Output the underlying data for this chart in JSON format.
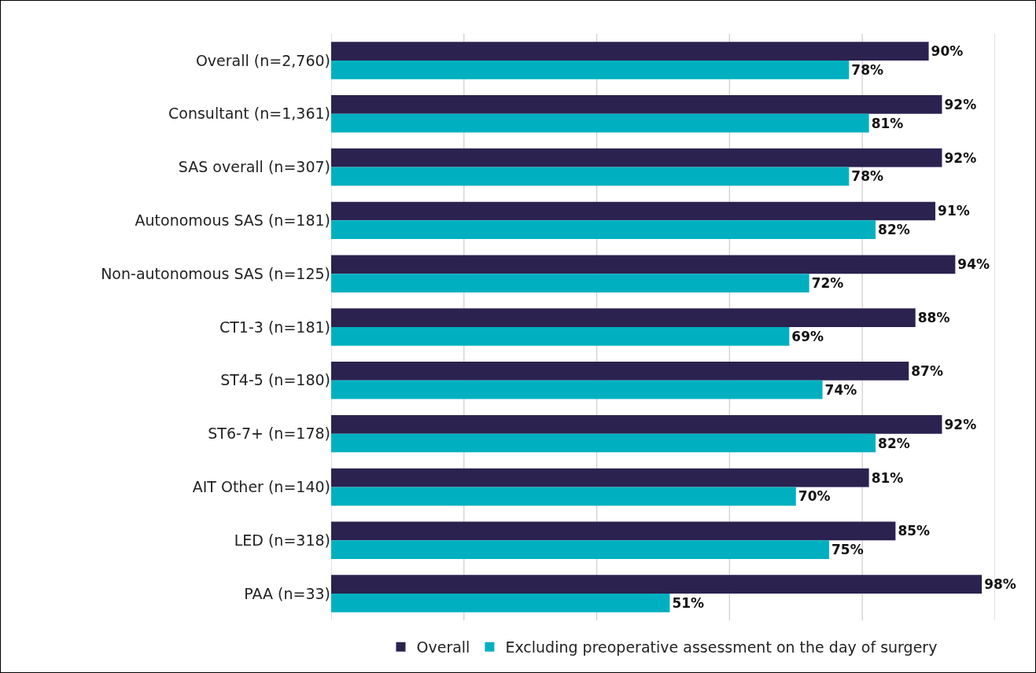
{
  "chart_data": {
    "type": "bar",
    "orientation": "horizontal",
    "categories": [
      "Overall (n=2,760)",
      "Consultant (n=1,361)",
      "SAS overall (n=307)",
      "Autonomous SAS (n=181)",
      "Non-autonomous SAS (n=125)",
      "CT1-3 (n=181)",
      "ST4-5 (n=180)",
      "ST6-7+ (n=178)",
      "AIT Other (n=140)",
      "LED (n=318)",
      "PAA (n=33)"
    ],
    "series": [
      {
        "name": "Overall",
        "color": "#2b2250",
        "values": [
          90,
          92,
          92,
          91,
          94,
          88,
          87,
          92,
          81,
          85,
          98
        ],
        "value_labels": [
          "90%",
          "92%",
          "92%",
          "91%",
          "94%",
          "88%",
          "87%",
          "92%",
          "81%",
          "85%",
          "98%"
        ]
      },
      {
        "name": "Excluding preoperative assessment on the day of surgery",
        "color": "#00b0c0",
        "values": [
          78,
          81,
          78,
          82,
          72,
          69,
          74,
          82,
          70,
          75,
          51
        ],
        "value_labels": [
          "78%",
          "81%",
          "78%",
          "82%",
          "72%",
          "69%",
          "74%",
          "82%",
          "70%",
          "75%",
          "51%"
        ]
      }
    ],
    "xlim": [
      0,
      100
    ],
    "xticks": [
      {
        "value": 0,
        "label": null
      },
      {
        "value": 20,
        "label": null
      },
      {
        "value": 40,
        "label": null
      },
      {
        "value": 60,
        "label": null
      },
      {
        "value": 80,
        "label": null
      },
      {
        "value": 100,
        "label": null
      }
    ],
    "tick_labels": "y",
    "grid": "x",
    "legend": "bottom"
  }
}
